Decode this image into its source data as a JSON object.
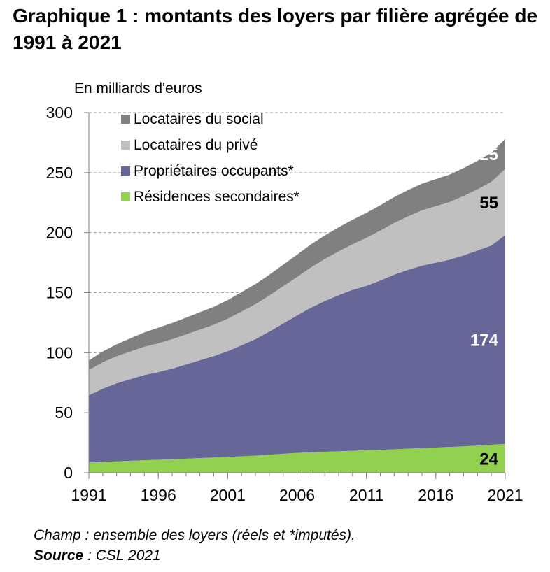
{
  "title": "Graphique 1 : montants des loyers par filière agrégée de 1991 à 2021",
  "chart_data": {
    "type": "area",
    "stacked": true,
    "unit_label": "En milliards d'euros",
    "x": [
      1991,
      1992,
      1993,
      1994,
      1995,
      1996,
      1997,
      1998,
      1999,
      2000,
      2001,
      2002,
      2003,
      2004,
      2005,
      2006,
      2007,
      2008,
      2009,
      2010,
      2011,
      2012,
      2013,
      2014,
      2015,
      2016,
      2017,
      2018,
      2019,
      2020,
      2021
    ],
    "x_ticks": [
      "1991",
      "1996",
      "2001",
      "2006",
      "2011",
      "2016",
      "2021"
    ],
    "y_ticks": [
      "0",
      "50",
      "100",
      "150",
      "200",
      "250",
      "300"
    ],
    "ylim": [
      0,
      300
    ],
    "grid": "horizontal dashed",
    "legend_position": "top-left",
    "series": [
      {
        "name": "Résidences secondaires*",
        "color": "#92d050",
        "values": [
          8.5,
          9.0,
          9.5,
          10.0,
          10.4,
          10.8,
          11.2,
          11.7,
          12.2,
          12.7,
          13.2,
          13.7,
          14.3,
          15.0,
          15.8,
          16.5,
          17.0,
          17.5,
          17.9,
          18.3,
          18.7,
          19.1,
          19.5,
          20.0,
          20.5,
          21.0,
          21.5,
          22.0,
          22.6,
          23.3,
          24.0
        ]
      },
      {
        "name": "Propriétaires occupants*",
        "color": "#666699",
        "values": [
          56,
          61,
          65,
          68,
          71,
          73,
          75.5,
          78.5,
          81.5,
          84.5,
          88,
          92.5,
          97,
          102.5,
          108.5,
          114.5,
          120.5,
          125.5,
          130,
          134,
          137,
          141,
          145.5,
          149,
          152,
          154,
          156,
          159,
          162.5,
          166,
          174
        ]
      },
      {
        "name": "Locataires du privé",
        "color": "#c0c0c0",
        "values": [
          21,
          22,
          22.5,
          23,
          23.5,
          24,
          24.5,
          25,
          25.5,
          26,
          27,
          28,
          29,
          30,
          31,
          32,
          33.5,
          35,
          36.5,
          38,
          40,
          41.5,
          43,
          44.5,
          46,
          47,
          48,
          49.5,
          51,
          53,
          55
        ]
      },
      {
        "name": "Locataires du social",
        "color": "#808080",
        "values": [
          8,
          9,
          10,
          11,
          12,
          13,
          13.5,
          14,
          14.5,
          15,
          15.5,
          16.2,
          16.8,
          17.4,
          18,
          18.6,
          19.2,
          19.6,
          20,
          20.4,
          20.8,
          21.2,
          21.6,
          22,
          22.3,
          22.6,
          22.9,
          23.3,
          23.7,
          24.2,
          25
        ]
      }
    ],
    "annotations": [
      {
        "text": "25",
        "series": "Locataires du social",
        "color": "#ffffff"
      },
      {
        "text": "55",
        "series": "Locataires du privé",
        "color": "#000000"
      },
      {
        "text": "174",
        "series": "Propriétaires occupants*",
        "color": "#ffffff"
      },
      {
        "text": "24",
        "series": "Résidences secondaires*",
        "color": "#000000"
      }
    ]
  },
  "notes": {
    "champ": "Champ : ensemble des loyers (réels et *imputés).",
    "source_label": "Source",
    "source_rest": " : CSL 2021"
  }
}
